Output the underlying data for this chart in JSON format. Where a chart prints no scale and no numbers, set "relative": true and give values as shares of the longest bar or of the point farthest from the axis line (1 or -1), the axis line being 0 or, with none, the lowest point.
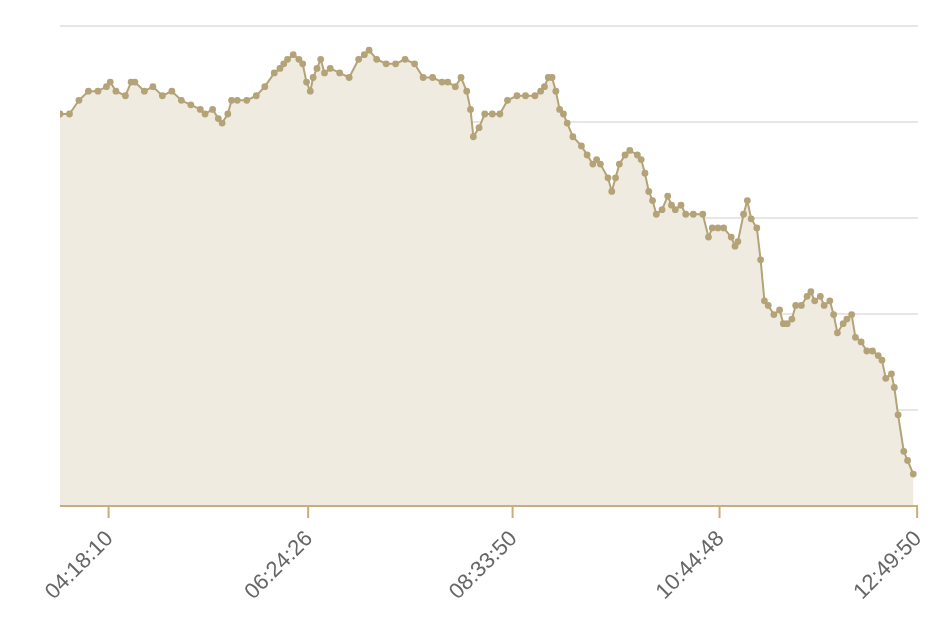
{
  "chart_data": {
    "type": "area",
    "relative": true,
    "grid": "y",
    "marker": "circle",
    "line_style": "solid",
    "xlim": [
      3.79,
      12.84
    ],
    "xticks": [
      {
        "value": 4.3028,
        "label": "04:18:10"
      },
      {
        "value": 6.4072,
        "label": "06:24:26"
      },
      {
        "value": 8.5639,
        "label": "08:33:50"
      },
      {
        "value": 10.7467,
        "label": "10:44:48"
      },
      {
        "value": 12.8306,
        "label": "12:49:50"
      }
    ],
    "x": [
      3.79,
      3.89,
      3.99,
      4.09,
      4.19,
      4.28,
      4.32,
      4.38,
      4.48,
      4.54,
      4.58,
      4.68,
      4.77,
      4.87,
      4.97,
      5.07,
      5.17,
      5.27,
      5.32,
      5.4,
      5.46,
      5.5,
      5.56,
      5.6,
      5.66,
      5.76,
      5.86,
      5.95,
      6.05,
      6.11,
      6.15,
      6.19,
      6.25,
      6.31,
      6.35,
      6.39,
      6.43,
      6.46,
      6.5,
      6.54,
      6.58,
      6.64,
      6.74,
      6.84,
      6.94,
      7.0,
      7.05,
      7.13,
      7.23,
      7.33,
      7.43,
      7.53,
      7.62,
      7.72,
      7.82,
      7.88,
      7.96,
      8.02,
      8.08,
      8.12,
      8.15,
      8.21,
      8.27,
      8.35,
      8.43,
      8.51,
      8.61,
      8.7,
      8.8,
      8.86,
      8.9,
      8.94,
      8.98,
      9.02,
      9.06,
      9.1,
      9.14,
      9.2,
      9.29,
      9.35,
      9.41,
      9.45,
      9.49,
      9.57,
      9.61,
      9.65,
      9.69,
      9.75,
      9.8,
      9.88,
      9.92,
      9.96,
      10.0,
      10.04,
      10.08,
      10.14,
      10.2,
      10.24,
      10.28,
      10.34,
      10.39,
      10.47,
      10.57,
      10.63,
      10.67,
      10.73,
      10.79,
      10.87,
      10.91,
      10.94,
      11.0,
      11.04,
      11.08,
      11.14,
      11.18,
      11.22,
      11.26,
      11.32,
      11.38,
      11.42,
      11.46,
      11.51,
      11.55,
      11.61,
      11.67,
      11.71,
      11.75,
      11.81,
      11.85,
      11.91,
      11.95,
      11.99,
      12.05,
      12.09,
      12.14,
      12.18,
      12.24,
      12.3,
      12.36,
      12.42,
      12.46,
      12.5,
      12.56,
      12.59,
      12.63,
      12.69,
      12.73,
      12.79
    ],
    "series": [
      {
        "color": "#b3a376",
        "values": [
          0.86,
          0.86,
          0.89,
          0.91,
          0.91,
          0.92,
          0.93,
          0.91,
          0.9,
          0.93,
          0.93,
          0.91,
          0.92,
          0.9,
          0.91,
          0.89,
          0.88,
          0.87,
          0.86,
          0.87,
          0.85,
          0.84,
          0.86,
          0.89,
          0.89,
          0.89,
          0.9,
          0.92,
          0.95,
          0.96,
          0.97,
          0.98,
          0.99,
          0.98,
          0.97,
          0.93,
          0.91,
          0.94,
          0.96,
          0.98,
          0.95,
          0.96,
          0.95,
          0.94,
          0.98,
          0.99,
          1,
          0.98,
          0.97,
          0.97,
          0.98,
          0.97,
          0.94,
          0.94,
          0.93,
          0.93,
          0.92,
          0.94,
          0.91,
          0.87,
          0.81,
          0.83,
          0.86,
          0.86,
          0.86,
          0.89,
          0.9,
          0.9,
          0.9,
          0.91,
          0.92,
          0.94,
          0.94,
          0.91,
          0.87,
          0.86,
          0.84,
          0.81,
          0.79,
          0.77,
          0.75,
          0.76,
          0.75,
          0.72,
          0.69,
          0.72,
          0.75,
          0.77,
          0.78,
          0.77,
          0.76,
          0.73,
          0.69,
          0.67,
          0.64,
          0.65,
          0.68,
          0.66,
          0.65,
          0.66,
          0.64,
          0.64,
          0.64,
          0.59,
          0.61,
          0.61,
          0.61,
          0.59,
          0.57,
          0.58,
          0.64,
          0.67,
          0.63,
          0.61,
          0.54,
          0.45,
          0.44,
          0.42,
          0.43,
          0.4,
          0.4,
          0.41,
          0.44,
          0.44,
          0.46,
          0.47,
          0.45,
          0.46,
          0.44,
          0.45,
          0.42,
          0.38,
          0.4,
          0.41,
          0.42,
          0.37,
          0.36,
          0.34,
          0.34,
          0.33,
          0.32,
          0.28,
          0.29,
          0.26,
          0.2,
          0.12,
          0.1,
          0.07
        ]
      }
    ]
  }
}
